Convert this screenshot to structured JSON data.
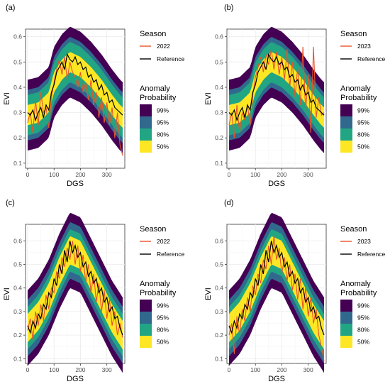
{
  "chart_data": [
    {
      "panel": "(a)",
      "type": "area",
      "xlabel": "DGS",
      "ylabel": "EVI",
      "xlim": [
        -8,
        368
      ],
      "ylim": [
        0.08,
        0.63
      ],
      "xticks": [
        0,
        100,
        200,
        300
      ],
      "yticks": [
        0.1,
        0.2,
        0.3,
        0.4,
        0.5,
        0.6
      ],
      "grid": true,
      "band_center": {
        "x": [
          0,
          40,
          80,
          100,
          130,
          160,
          200,
          240,
          280,
          320,
          350,
          360
        ],
        "y": [
          0.29,
          0.3,
          0.34,
          0.42,
          0.47,
          0.5,
          0.48,
          0.44,
          0.39,
          0.33,
          0.29,
          0.28
        ]
      },
      "band_halfwidth": [
        0.04,
        0.08,
        0.1,
        0.14
      ],
      "series": [
        {
          "name": "2022",
          "x": [
            0,
            10,
            20,
            30,
            40,
            50,
            60,
            70,
            80,
            90,
            100,
            110,
            120,
            130,
            140,
            150,
            160,
            170,
            180,
            190,
            200,
            210,
            220,
            230,
            240,
            250,
            260,
            270,
            280,
            290,
            300,
            310,
            320,
            330,
            340,
            350,
            360
          ],
          "y": [
            0.26,
            0.3,
            0.22,
            0.35,
            0.25,
            0.38,
            0.3,
            0.32,
            0.24,
            0.36,
            0.42,
            0.47,
            0.51,
            0.45,
            0.52,
            0.43,
            0.5,
            0.46,
            0.44,
            0.4,
            0.46,
            0.38,
            0.42,
            0.35,
            0.43,
            0.33,
            0.38,
            0.28,
            0.36,
            0.26,
            0.34,
            0.25,
            0.32,
            0.2,
            0.3,
            0.17,
            0.13
          ]
        },
        {
          "name": "Reference",
          "x": [
            0,
            10,
            20,
            30,
            40,
            50,
            60,
            70,
            80,
            90,
            100,
            110,
            120,
            130,
            140,
            150,
            160,
            170,
            180,
            190,
            200,
            210,
            220,
            230,
            240,
            250,
            260,
            270,
            280,
            290,
            300,
            310,
            320,
            330,
            340,
            350,
            360
          ],
          "y": [
            0.3,
            0.29,
            0.31,
            0.27,
            0.3,
            0.32,
            0.28,
            0.33,
            0.31,
            0.38,
            0.41,
            0.46,
            0.48,
            0.5,
            0.47,
            0.53,
            0.51,
            0.5,
            0.52,
            0.49,
            0.5,
            0.47,
            0.48,
            0.44,
            0.45,
            0.42,
            0.43,
            0.39,
            0.41,
            0.37,
            0.38,
            0.34,
            0.35,
            0.32,
            0.31,
            0.3,
            0.29
          ]
        }
      ]
    },
    {
      "panel": "(b)",
      "type": "area",
      "xlabel": "DGS",
      "ylabel": "EVI",
      "xlim": [
        -8,
        368
      ],
      "ylim": [
        0.08,
        0.63
      ],
      "xticks": [
        0,
        100,
        200,
        300
      ],
      "yticks": [
        0.1,
        0.2,
        0.3,
        0.4,
        0.5,
        0.6
      ],
      "grid": true,
      "band_center": {
        "x": [
          0,
          40,
          80,
          100,
          130,
          160,
          200,
          240,
          280,
          320,
          350,
          360
        ],
        "y": [
          0.29,
          0.3,
          0.34,
          0.42,
          0.47,
          0.5,
          0.48,
          0.44,
          0.39,
          0.33,
          0.29,
          0.28
        ]
      },
      "band_halfwidth": [
        0.04,
        0.08,
        0.1,
        0.14
      ],
      "series": [
        {
          "name": "2023",
          "x": [
            0,
            10,
            20,
            30,
            40,
            50,
            60,
            70,
            80,
            90,
            100,
            110,
            120,
            130,
            140,
            150,
            160,
            170,
            180,
            190,
            200,
            210,
            220,
            230,
            240,
            250,
            260,
            270,
            280,
            290,
            300,
            310,
            320,
            330,
            340,
            350,
            360
          ],
          "y": [
            0.25,
            0.3,
            0.2,
            0.33,
            0.22,
            0.3,
            0.27,
            0.33,
            0.25,
            0.37,
            0.44,
            0.48,
            0.52,
            0.46,
            0.53,
            0.49,
            0.55,
            0.47,
            0.54,
            0.45,
            0.52,
            0.43,
            0.55,
            0.4,
            0.5,
            0.36,
            0.48,
            0.33,
            0.56,
            0.3,
            0.45,
            0.22,
            0.56,
            0.28,
            0.36,
            0.29,
            0.3
          ]
        },
        {
          "name": "Reference",
          "x": [
            0,
            10,
            20,
            30,
            40,
            50,
            60,
            70,
            80,
            90,
            100,
            110,
            120,
            130,
            140,
            150,
            160,
            170,
            180,
            190,
            200,
            210,
            220,
            230,
            240,
            250,
            260,
            270,
            280,
            290,
            300,
            310,
            320,
            330,
            340,
            350,
            360
          ],
          "y": [
            0.3,
            0.29,
            0.31,
            0.27,
            0.3,
            0.32,
            0.28,
            0.33,
            0.31,
            0.38,
            0.41,
            0.46,
            0.48,
            0.5,
            0.47,
            0.53,
            0.51,
            0.5,
            0.52,
            0.49,
            0.5,
            0.47,
            0.48,
            0.44,
            0.45,
            0.42,
            0.43,
            0.39,
            0.41,
            0.37,
            0.38,
            0.34,
            0.35,
            0.32,
            0.31,
            0.3,
            0.29
          ]
        }
      ]
    },
    {
      "panel": "(c)",
      "type": "area",
      "xlabel": "DGS",
      "ylabel": "EVI",
      "xlim": [
        -8,
        368
      ],
      "ylim": [
        0.08,
        0.67
      ],
      "xticks": [
        0,
        100,
        200,
        300
      ],
      "yticks": [
        0.1,
        0.2,
        0.3,
        0.4,
        0.5,
        0.6
      ],
      "grid": true,
      "band_center": {
        "x": [
          0,
          40,
          80,
          120,
          160,
          200,
          240,
          280,
          320,
          360
        ],
        "y": [
          0.23,
          0.28,
          0.36,
          0.47,
          0.56,
          0.54,
          0.45,
          0.36,
          0.27,
          0.2
        ]
      },
      "band_halfwidth": [
        0.06,
        0.09,
        0.12,
        0.16
      ],
      "series": [
        {
          "name": "2022",
          "x": [
            0,
            10,
            20,
            30,
            40,
            50,
            60,
            70,
            80,
            90,
            100,
            110,
            120,
            130,
            140,
            150,
            160,
            170,
            180,
            190,
            200,
            210,
            220,
            230,
            240,
            250,
            260,
            270,
            280,
            290,
            300,
            310,
            320,
            330,
            340,
            350,
            360
          ],
          "y": [
            0.22,
            0.27,
            0.18,
            0.3,
            0.24,
            0.33,
            0.26,
            0.37,
            0.31,
            0.4,
            0.38,
            0.47,
            0.44,
            0.53,
            0.49,
            0.57,
            0.52,
            0.6,
            0.5,
            0.58,
            0.47,
            0.54,
            0.42,
            0.5,
            0.38,
            0.46,
            0.34,
            0.42,
            0.3,
            0.39,
            0.27,
            0.35,
            0.24,
            0.3,
            0.2,
            0.25,
            0.19
          ]
        },
        {
          "name": "Reference",
          "x": [
            0,
            10,
            20,
            30,
            40,
            50,
            60,
            70,
            80,
            90,
            100,
            110,
            120,
            130,
            140,
            150,
            160,
            170,
            180,
            190,
            200,
            210,
            220,
            230,
            240,
            250,
            260,
            270,
            280,
            290,
            300,
            310,
            320,
            330,
            340,
            350,
            360
          ],
          "y": [
            0.24,
            0.21,
            0.26,
            0.23,
            0.29,
            0.27,
            0.33,
            0.31,
            0.38,
            0.36,
            0.44,
            0.41,
            0.5,
            0.46,
            0.56,
            0.51,
            0.6,
            0.55,
            0.58,
            0.53,
            0.55,
            0.49,
            0.51,
            0.45,
            0.47,
            0.42,
            0.44,
            0.38,
            0.4,
            0.34,
            0.36,
            0.3,
            0.32,
            0.27,
            0.28,
            0.23,
            0.2
          ]
        }
      ]
    },
    {
      "panel": "(d)",
      "type": "area",
      "xlabel": "DGS",
      "ylabel": "EVI",
      "xlim": [
        -8,
        368
      ],
      "ylim": [
        0.08,
        0.67
      ],
      "xticks": [
        0,
        100,
        200,
        300
      ],
      "yticks": [
        0.1,
        0.2,
        0.3,
        0.4,
        0.5,
        0.6
      ],
      "grid": true,
      "band_center": {
        "x": [
          0,
          40,
          80,
          120,
          160,
          200,
          240,
          280,
          320,
          360
        ],
        "y": [
          0.23,
          0.28,
          0.36,
          0.47,
          0.56,
          0.54,
          0.45,
          0.36,
          0.27,
          0.2
        ]
      },
      "band_halfwidth": [
        0.06,
        0.09,
        0.12,
        0.16
      ],
      "series": [
        {
          "name": "2023",
          "x": [
            0,
            10,
            20,
            30,
            40,
            50,
            60,
            70,
            80,
            90,
            100,
            110,
            120,
            130,
            140,
            150,
            160,
            170,
            180,
            190,
            200,
            210,
            220,
            230,
            240,
            250,
            260,
            270,
            280,
            290,
            300,
            310,
            320,
            330,
            340,
            350,
            360
          ],
          "y": [
            0.2,
            0.25,
            0.12,
            0.28,
            0.2,
            0.31,
            0.26,
            0.36,
            0.3,
            0.41,
            0.37,
            0.46,
            0.42,
            0.52,
            0.48,
            0.58,
            0.5,
            0.62,
            0.52,
            0.57,
            0.46,
            0.53,
            0.43,
            0.5,
            0.39,
            0.46,
            0.35,
            0.44,
            0.31,
            0.4,
            0.28,
            0.36,
            0.25,
            0.31,
            0.2,
            0.15,
            0.09
          ]
        },
        {
          "name": "Reference",
          "x": [
            0,
            10,
            20,
            30,
            40,
            50,
            60,
            70,
            80,
            90,
            100,
            110,
            120,
            130,
            140,
            150,
            160,
            170,
            180,
            190,
            200,
            210,
            220,
            230,
            240,
            250,
            260,
            270,
            280,
            290,
            300,
            310,
            320,
            330,
            340,
            350,
            360
          ],
          "y": [
            0.24,
            0.21,
            0.26,
            0.23,
            0.29,
            0.27,
            0.33,
            0.31,
            0.38,
            0.36,
            0.44,
            0.41,
            0.5,
            0.46,
            0.56,
            0.51,
            0.6,
            0.55,
            0.58,
            0.53,
            0.55,
            0.49,
            0.51,
            0.45,
            0.47,
            0.42,
            0.44,
            0.38,
            0.4,
            0.34,
            0.36,
            0.3,
            0.32,
            0.27,
            0.28,
            0.23,
            0.2
          ]
        }
      ]
    }
  ],
  "legends": [
    {
      "season_title": "Season",
      "season_items": [
        {
          "label": "2022",
          "color": "#e8542a"
        },
        {
          "label": "Reference",
          "color": "#000000"
        }
      ],
      "prob_title_1": "Anomaly",
      "prob_title_2": "Probability",
      "prob_items": [
        {
          "label": "99%",
          "color": "#440154"
        },
        {
          "label": "95%",
          "color": "#31688e"
        },
        {
          "label": "80%",
          "color": "#21a583"
        },
        {
          "label": "50%",
          "color": "#fde725"
        }
      ]
    },
    {
      "season_title": "Season",
      "season_items": [
        {
          "label": "2023",
          "color": "#e8542a"
        },
        {
          "label": "Reference",
          "color": "#000000"
        }
      ],
      "prob_title_1": "Anomaly",
      "prob_title_2": "Probability",
      "prob_items": [
        {
          "label": "99%",
          "color": "#440154"
        },
        {
          "label": "95%",
          "color": "#31688e"
        },
        {
          "label": "80%",
          "color": "#21a583"
        },
        {
          "label": "50%",
          "color": "#fde725"
        }
      ]
    },
    {
      "season_title": "Season",
      "season_items": [
        {
          "label": "2022",
          "color": "#e8542a"
        },
        {
          "label": "Reference",
          "color": "#000000"
        }
      ],
      "prob_title_1": "Anomaly",
      "prob_title_2": "Probability",
      "prob_items": [
        {
          "label": "99%",
          "color": "#440154"
        },
        {
          "label": "95%",
          "color": "#31688e"
        },
        {
          "label": "80%",
          "color": "#21a583"
        },
        {
          "label": "50%",
          "color": "#fde725"
        }
      ]
    },
    {
      "season_title": "Season",
      "season_items": [
        {
          "label": "2023",
          "color": "#e8542a"
        },
        {
          "label": "Reference",
          "color": "#000000"
        }
      ],
      "prob_title_1": "Anomaly",
      "prob_title_2": "Probability",
      "prob_items": [
        {
          "label": "99%",
          "color": "#440154"
        },
        {
          "label": "95%",
          "color": "#31688e"
        },
        {
          "label": "80%",
          "color": "#21a583"
        },
        {
          "label": "50%",
          "color": "#fde725"
        }
      ]
    }
  ],
  "colors": {
    "band_99": "#440154",
    "band_95": "#31688e",
    "band_80": "#21a583",
    "band_50": "#fde725",
    "season_line": "#e8542a",
    "reference_line": "#000000",
    "grid": "#ebebeb"
  }
}
